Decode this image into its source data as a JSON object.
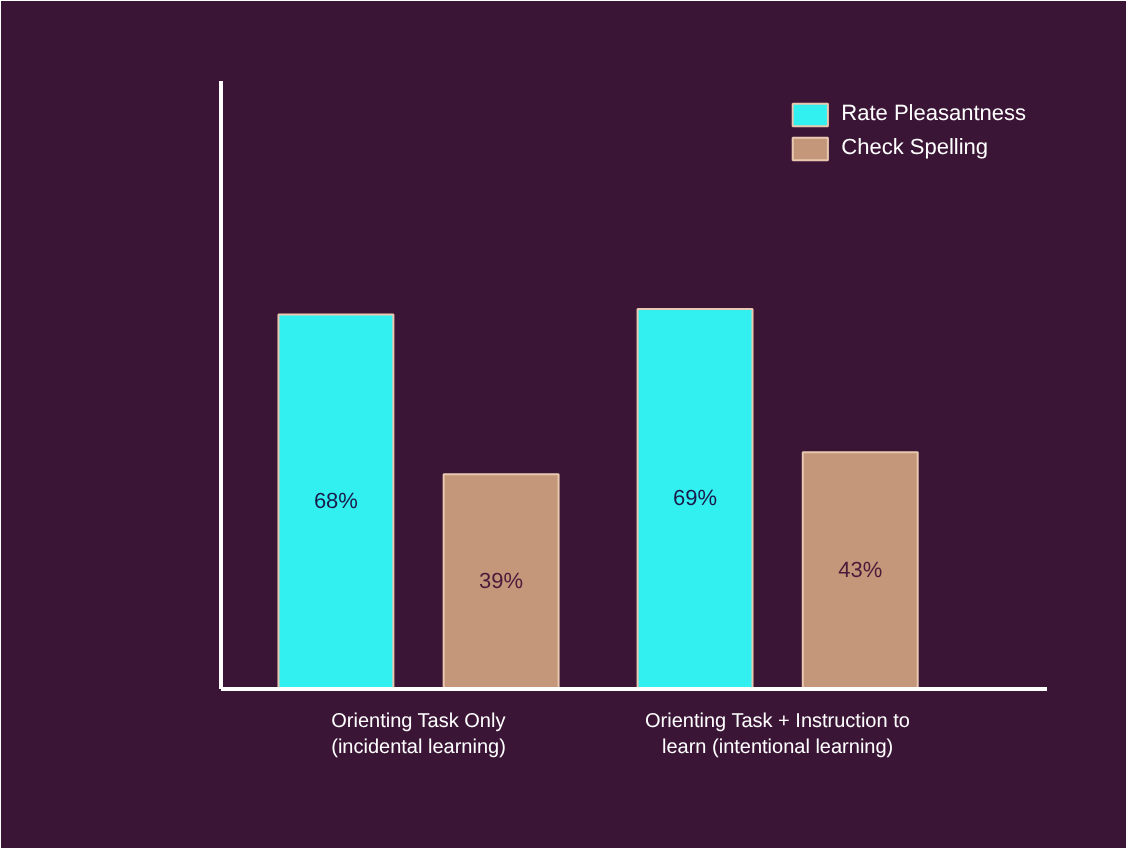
{
  "chart_data": {
    "type": "bar",
    "categories": [
      "Orienting Task Only\n(incidental learning)",
      "Orienting Task + Instruction to\nlearn (intentional learning)"
    ],
    "series": [
      {
        "name": "Rate Pleasantness",
        "color": "#33f0f0",
        "values": [
          68,
          69
        ],
        "value_labels": [
          "68%",
          "69%"
        ]
      },
      {
        "name": "Check Spelling",
        "color": "#c4977a",
        "values": [
          39,
          43
        ],
        "value_labels": [
          "39%",
          "43%"
        ]
      }
    ],
    "legend": "top right",
    "grid": false
  }
}
